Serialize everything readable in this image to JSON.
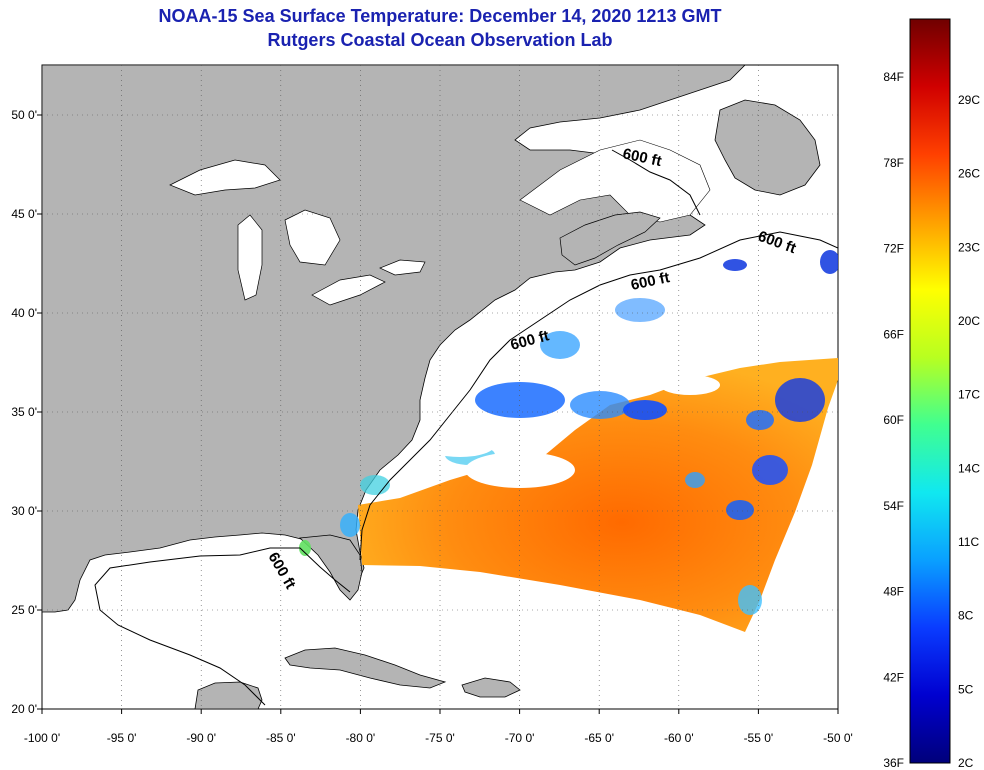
{
  "header": {
    "title": "NOAA-15 Sea Surface Temperature:  December 14, 2020 1213 GMT",
    "subtitle": "Rutgers Coastal Ocean Observation Lab"
  },
  "map": {
    "lon_ticks": [
      "-100 0'",
      "-95 0'",
      "-90 0'",
      "-85 0'",
      "-80 0'",
      "-75 0'",
      "-70 0'",
      "-65 0'",
      "-60 0'",
      "-55 0'",
      "-50 0'"
    ],
    "lat_ticks": [
      "20 0'",
      "25 0'",
      "30 0'",
      "35 0'",
      "40 0'",
      "45 0'",
      "50 0'"
    ],
    "contour_labels": [
      "600 ft",
      "600 ft",
      "600 ft",
      "600 ft",
      "600 ft"
    ],
    "colors": {
      "land": "#b4b4b4",
      "no_data": "#ffffff",
      "grid": "#444444"
    }
  },
  "colorbar": {
    "fahrenheit_labels": [
      "84F",
      "78F",
      "72F",
      "66F",
      "60F",
      "54F",
      "48F",
      "42F",
      "36F"
    ],
    "celsius_labels": [
      "29C",
      "26C",
      "23C",
      "20C",
      "17C",
      "14C",
      "11C",
      "8C",
      "5C",
      "2C"
    ],
    "colors": [
      "#00007a",
      "#0000d0",
      "#0a3cff",
      "#0aa0ff",
      "#10e8f0",
      "#40ff90",
      "#b8ff20",
      "#ffff00",
      "#ffa000",
      "#ff4000",
      "#d00000",
      "#700000"
    ]
  }
}
